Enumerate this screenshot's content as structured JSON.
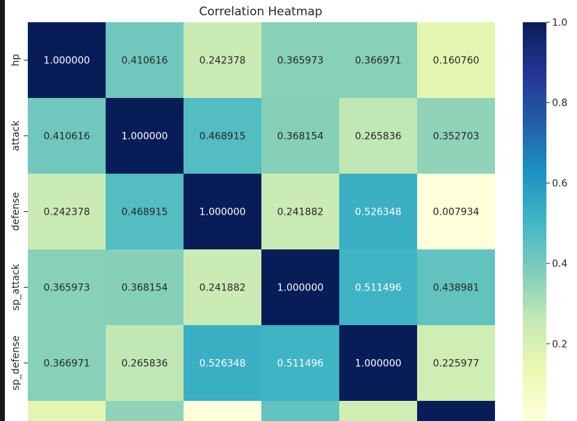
{
  "chart_data": {
    "type": "heatmap",
    "title": "Correlation Heatmap",
    "row_labels": [
      "hp",
      "attack",
      "defense",
      "sp_attack",
      "sp_defense"
    ],
    "col_count": 6,
    "values": [
      [
        1.0,
        0.410616,
        0.242378,
        0.365973,
        0.366971,
        0.16076
      ],
      [
        0.410616,
        1.0,
        0.468915,
        0.368154,
        0.265836,
        0.352703
      ],
      [
        0.242378,
        0.468915,
        1.0,
        0.241882,
        0.526348,
        0.007934
      ],
      [
        0.365973,
        0.368154,
        0.241882,
        1.0,
        0.511496,
        0.438981
      ],
      [
        0.366971,
        0.265836,
        0.526348,
        0.511496,
        1.0,
        0.225977
      ]
    ],
    "cell_text": [
      [
        "1.000000",
        "0.410616",
        "0.242378",
        "0.365973",
        "0.366971",
        "0.160760"
      ],
      [
        "0.410616",
        "1.000000",
        "0.468915",
        "0.368154",
        "0.265836",
        "0.352703"
      ],
      [
        "0.242378",
        "0.468915",
        "1.000000",
        "0.241882",
        "0.526348",
        "0.007934"
      ],
      [
        "0.365973",
        "0.368154",
        "0.241882",
        "1.000000",
        "0.511496",
        "0.438981"
      ],
      [
        "0.366971",
        "0.265836",
        "0.526348",
        "0.511496",
        "1.000000",
        "0.225977"
      ]
    ],
    "partial_row_values": [
      0.16076,
      0.352703,
      0.007934,
      0.438981,
      0.225977,
      1.0
    ],
    "colorbar": {
      "colormap": "YlGnBu",
      "range": [
        0.007934,
        1.0
      ],
      "ticks": [
        0.2,
        0.4,
        0.6,
        0.8,
        1.0
      ],
      "tick_labels": [
        "0.2",
        "0.4",
        "0.6",
        "0.8",
        "1.0"
      ]
    },
    "annotations": "cell values shown with 6 decimals",
    "grid": false
  }
}
